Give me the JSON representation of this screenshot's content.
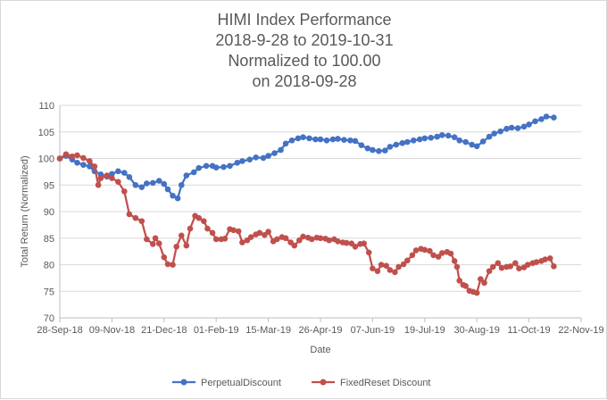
{
  "chart_data": {
    "type": "line",
    "title_lines": [
      "HIMI Index Performance",
      "2018-9-28 to 2019-10-31",
      "Normalized to 100.00",
      "on 2018-09-28"
    ],
    "xlabel": "Date",
    "ylabel": "Total Return (Normalized)",
    "ylim": [
      70,
      110
    ],
    "yticks": [
      "70",
      "75",
      "80",
      "85",
      "90",
      "95",
      "100",
      "105",
      "110"
    ],
    "xlim": [
      "2018-09-28",
      "2019-11-22"
    ],
    "xticks": [
      "28-Sep-18",
      "09-Nov-18",
      "21-Dec-18",
      "01-Feb-19",
      "15-Mar-19",
      "26-Apr-19",
      "07-Jun-19",
      "19-Jul-19",
      "30-Aug-19",
      "11-Oct-19",
      "22-Nov-19"
    ],
    "grid": "horizontal",
    "legend_position": "bottom",
    "series": [
      {
        "name": "PerpetualDiscount",
        "color": "#4472C4",
        "points": [
          [
            "2018-09-28",
            100.0
          ],
          [
            "2018-10-03",
            100.5
          ],
          [
            "2018-10-08",
            99.8
          ],
          [
            "2018-10-12",
            99.2
          ],
          [
            "2018-10-17",
            98.8
          ],
          [
            "2018-10-22",
            98.5
          ],
          [
            "2018-10-26",
            97.6
          ],
          [
            "2018-10-31",
            97.0
          ],
          [
            "2018-11-05",
            96.6
          ],
          [
            "2018-11-09",
            97.1
          ],
          [
            "2018-11-14",
            97.6
          ],
          [
            "2018-11-19",
            97.3
          ],
          [
            "2018-11-23",
            96.5
          ],
          [
            "2018-11-28",
            95.0
          ],
          [
            "2018-12-03",
            94.6
          ],
          [
            "2018-12-07",
            95.3
          ],
          [
            "2018-12-12",
            95.4
          ],
          [
            "2018-12-17",
            95.8
          ],
          [
            "2018-12-21",
            95.2
          ],
          [
            "2018-12-24",
            94.2
          ],
          [
            "2018-12-28",
            93.0
          ],
          [
            "2019-01-01",
            92.5
          ],
          [
            "2019-01-04",
            95.0
          ],
          [
            "2019-01-08",
            96.8
          ],
          [
            "2019-01-14",
            97.4
          ],
          [
            "2019-01-18",
            98.2
          ],
          [
            "2019-01-24",
            98.6
          ],
          [
            "2019-01-29",
            98.6
          ],
          [
            "2019-02-01",
            98.3
          ],
          [
            "2019-02-07",
            98.4
          ],
          [
            "2019-02-12",
            98.6
          ],
          [
            "2019-02-18",
            99.2
          ],
          [
            "2019-02-22",
            99.5
          ],
          [
            "2019-02-28",
            99.8
          ],
          [
            "2019-03-05",
            100.2
          ],
          [
            "2019-03-11",
            100.1
          ],
          [
            "2019-03-15",
            100.5
          ],
          [
            "2019-03-20",
            101.0
          ],
          [
            "2019-03-25",
            101.6
          ],
          [
            "2019-03-29",
            102.8
          ],
          [
            "2019-04-03",
            103.4
          ],
          [
            "2019-04-08",
            103.8
          ],
          [
            "2019-04-12",
            104.0
          ],
          [
            "2019-04-17",
            103.8
          ],
          [
            "2019-04-22",
            103.6
          ],
          [
            "2019-04-26",
            103.6
          ],
          [
            "2019-05-01",
            103.4
          ],
          [
            "2019-05-06",
            103.6
          ],
          [
            "2019-05-10",
            103.7
          ],
          [
            "2019-05-15",
            103.5
          ],
          [
            "2019-05-20",
            103.4
          ],
          [
            "2019-05-24",
            103.3
          ],
          [
            "2019-05-29",
            102.5
          ],
          [
            "2019-06-03",
            101.9
          ],
          [
            "2019-06-07",
            101.6
          ],
          [
            "2019-06-12",
            101.4
          ],
          [
            "2019-06-17",
            101.5
          ],
          [
            "2019-06-21",
            102.2
          ],
          [
            "2019-06-26",
            102.6
          ],
          [
            "2019-07-01",
            102.9
          ],
          [
            "2019-07-05",
            103.1
          ],
          [
            "2019-07-10",
            103.4
          ],
          [
            "2019-07-15",
            103.6
          ],
          [
            "2019-07-19",
            103.8
          ],
          [
            "2019-07-24",
            103.9
          ],
          [
            "2019-07-29",
            104.1
          ],
          [
            "2019-08-02",
            104.4
          ],
          [
            "2019-08-07",
            104.3
          ],
          [
            "2019-08-12",
            104.0
          ],
          [
            "2019-08-16",
            103.4
          ],
          [
            "2019-08-21",
            103.1
          ],
          [
            "2019-08-26",
            102.6
          ],
          [
            "2019-08-30",
            102.3
          ],
          [
            "2019-09-04",
            103.2
          ],
          [
            "2019-09-09",
            104.1
          ],
          [
            "2019-09-13",
            104.7
          ],
          [
            "2019-09-18",
            105.1
          ],
          [
            "2019-09-23",
            105.6
          ],
          [
            "2019-09-27",
            105.8
          ],
          [
            "2019-10-02",
            105.7
          ],
          [
            "2019-10-07",
            106.0
          ],
          [
            "2019-10-11",
            106.4
          ],
          [
            "2019-10-16",
            107.0
          ],
          [
            "2019-10-21",
            107.4
          ],
          [
            "2019-10-25",
            107.9
          ],
          [
            "2019-10-31",
            107.7
          ]
        ]
      },
      {
        "name": "FixedReset Discount",
        "color": "#C0504D",
        "points": [
          [
            "2018-09-28",
            100.0
          ],
          [
            "2018-10-03",
            100.8
          ],
          [
            "2018-10-08",
            100.4
          ],
          [
            "2018-10-12",
            100.6
          ],
          [
            "2018-10-17",
            100.1
          ],
          [
            "2018-10-22",
            99.5
          ],
          [
            "2018-10-26",
            98.5
          ],
          [
            "2018-10-29",
            95.0
          ],
          [
            "2018-10-31",
            96.3
          ],
          [
            "2018-11-05",
            96.8
          ],
          [
            "2018-11-09",
            96.3
          ],
          [
            "2018-11-14",
            95.6
          ],
          [
            "2018-11-19",
            93.8
          ],
          [
            "2018-11-23",
            89.5
          ],
          [
            "2018-11-28",
            88.8
          ],
          [
            "2018-12-03",
            88.2
          ],
          [
            "2018-12-07",
            84.8
          ],
          [
            "2018-12-12",
            83.9
          ],
          [
            "2018-12-14",
            85.0
          ],
          [
            "2018-12-17",
            84.0
          ],
          [
            "2018-12-21",
            81.4
          ],
          [
            "2018-12-24",
            80.1
          ],
          [
            "2018-12-28",
            80.0
          ],
          [
            "2018-12-31",
            83.4
          ],
          [
            "2019-01-04",
            85.5
          ],
          [
            "2019-01-08",
            83.6
          ],
          [
            "2019-01-11",
            86.8
          ],
          [
            "2019-01-15",
            89.2
          ],
          [
            "2019-01-18",
            88.8
          ],
          [
            "2019-01-22",
            88.2
          ],
          [
            "2019-01-25",
            86.8
          ],
          [
            "2019-01-29",
            86.0
          ],
          [
            "2019-02-01",
            84.8
          ],
          [
            "2019-02-05",
            84.8
          ],
          [
            "2019-02-08",
            84.9
          ],
          [
            "2019-02-12",
            86.7
          ],
          [
            "2019-02-15",
            86.5
          ],
          [
            "2019-02-19",
            86.3
          ],
          [
            "2019-02-22",
            84.2
          ],
          [
            "2019-02-26",
            84.6
          ],
          [
            "2019-03-01",
            85.2
          ],
          [
            "2019-03-05",
            85.7
          ],
          [
            "2019-03-08",
            86.0
          ],
          [
            "2019-03-12",
            85.6
          ],
          [
            "2019-03-15",
            86.2
          ],
          [
            "2019-03-19",
            84.4
          ],
          [
            "2019-03-22",
            84.8
          ],
          [
            "2019-03-26",
            85.2
          ],
          [
            "2019-03-29",
            85.0
          ],
          [
            "2019-04-02",
            84.2
          ],
          [
            "2019-04-05",
            83.6
          ],
          [
            "2019-04-09",
            84.6
          ],
          [
            "2019-04-12",
            85.3
          ],
          [
            "2019-04-16",
            85.1
          ],
          [
            "2019-04-19",
            84.8
          ],
          [
            "2019-04-23",
            85.1
          ],
          [
            "2019-04-26",
            85.0
          ],
          [
            "2019-04-30",
            84.9
          ],
          [
            "2019-05-03",
            84.6
          ],
          [
            "2019-05-07",
            84.8
          ],
          [
            "2019-05-10",
            84.4
          ],
          [
            "2019-05-14",
            84.2
          ],
          [
            "2019-05-17",
            84.1
          ],
          [
            "2019-05-21",
            84.0
          ],
          [
            "2019-05-24",
            83.4
          ],
          [
            "2019-05-28",
            83.9
          ],
          [
            "2019-05-31",
            84.0
          ],
          [
            "2019-06-04",
            82.3
          ],
          [
            "2019-06-07",
            79.3
          ],
          [
            "2019-06-11",
            78.8
          ],
          [
            "2019-06-14",
            80.0
          ],
          [
            "2019-06-18",
            79.8
          ],
          [
            "2019-06-21",
            79.0
          ],
          [
            "2019-06-25",
            78.6
          ],
          [
            "2019-06-28",
            79.6
          ],
          [
            "2019-07-02",
            80.1
          ],
          [
            "2019-07-05",
            80.8
          ],
          [
            "2019-07-09",
            81.8
          ],
          [
            "2019-07-12",
            82.7
          ],
          [
            "2019-07-16",
            83.0
          ],
          [
            "2019-07-19",
            82.8
          ],
          [
            "2019-07-23",
            82.6
          ],
          [
            "2019-07-26",
            81.8
          ],
          [
            "2019-07-30",
            81.5
          ],
          [
            "2019-08-02",
            82.2
          ],
          [
            "2019-08-06",
            82.4
          ],
          [
            "2019-08-09",
            82.1
          ],
          [
            "2019-08-12",
            80.7
          ],
          [
            "2019-08-14",
            79.6
          ],
          [
            "2019-08-16",
            77.0
          ],
          [
            "2019-08-19",
            76.2
          ],
          [
            "2019-08-21",
            76.0
          ],
          [
            "2019-08-24",
            75.1
          ],
          [
            "2019-08-27",
            74.9
          ],
          [
            "2019-08-30",
            74.7
          ],
          [
            "2019-09-02",
            77.3
          ],
          [
            "2019-09-05",
            76.6
          ],
          [
            "2019-09-09",
            78.8
          ],
          [
            "2019-09-12",
            79.6
          ],
          [
            "2019-09-16",
            80.3
          ],
          [
            "2019-09-19",
            79.4
          ],
          [
            "2019-09-23",
            79.6
          ],
          [
            "2019-09-26",
            79.7
          ],
          [
            "2019-09-30",
            80.3
          ],
          [
            "2019-10-03",
            79.3
          ],
          [
            "2019-10-07",
            79.5
          ],
          [
            "2019-10-10",
            80.0
          ],
          [
            "2019-10-14",
            80.3
          ],
          [
            "2019-10-17",
            80.5
          ],
          [
            "2019-10-21",
            80.7
          ],
          [
            "2019-10-24",
            81.0
          ],
          [
            "2019-10-28",
            81.2
          ],
          [
            "2019-10-31",
            79.7
          ]
        ]
      }
    ]
  }
}
